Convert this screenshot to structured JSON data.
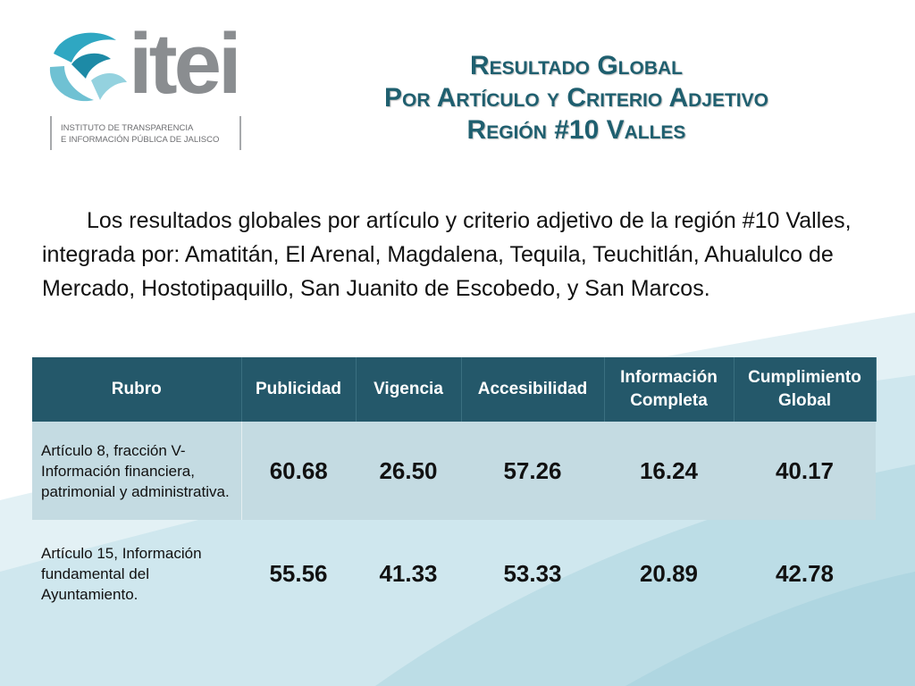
{
  "logo": {
    "wordmark": "itei",
    "subtitle_line1": "INSTITUTO DE TRANSPARENCIA",
    "subtitle_line2": "E INFORMACIÓN PÚBLICA DE JALISCO"
  },
  "title": {
    "line1": "Resultado Global",
    "line2": "Por Artículo y Criterio Adjetivo",
    "line3": "Región #10 Valles"
  },
  "intro": "Los resultados globales por artículo y criterio adjetivo de la región #10 Valles, integrada por: Amatitán, El Arenal, Magdalena, Tequila, Teuchitlán, Ahualulco de Mercado, Hostotipaquillo, San Juanito de Escobedo, y San Marcos.",
  "table": {
    "headers": [
      "Rubro",
      "Publicidad",
      "Vigencia",
      "Accesibilidad",
      "Información Completa",
      "Cumplimiento Global"
    ],
    "rows": [
      {
        "rubro": "Artículo 8, fracción V- Información financiera, patrimonial y administrativa.",
        "publicidad": "60.68",
        "vigencia": "26.50",
        "accesibilidad": "57.26",
        "informacion_completa": "16.24",
        "cumplimiento_global": "40.17"
      },
      {
        "rubro": "Artículo 15, Información fundamental del Ayuntamiento.",
        "publicidad": "55.56",
        "vigencia": "41.33",
        "accesibilidad": "53.33",
        "informacion_completa": "20.89",
        "cumplimiento_global": "42.78"
      }
    ]
  },
  "colors": {
    "title": "#1f5f6f",
    "header_bg": "#24586a",
    "row_highlight": "#c4dbe2",
    "wave_light": "#dcedf2",
    "wave_mid": "#b9dde6"
  }
}
